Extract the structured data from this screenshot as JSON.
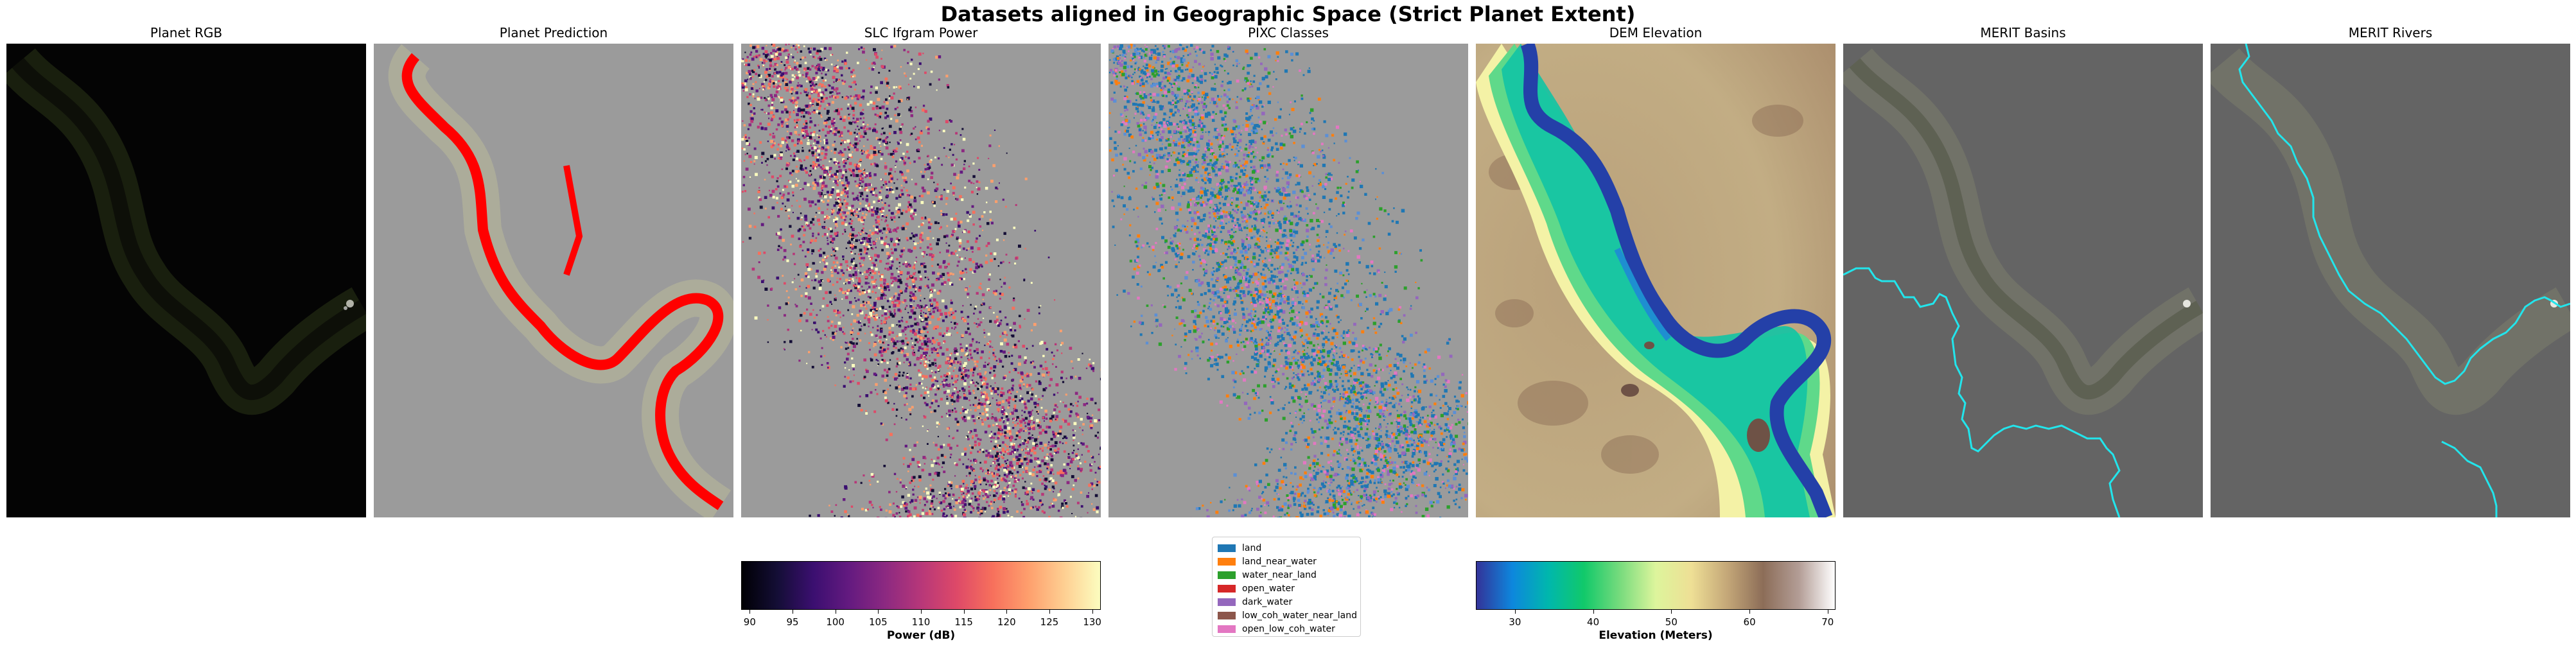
{
  "figure": {
    "title": "Datasets aligned in Geographic Space (Strict Planet Extent)"
  },
  "panels": {
    "planet_rgb": "Planet RGB",
    "planet_prediction": "Planet Prediction",
    "slc_power": "SLC Ifgram Power",
    "pixc_classes": "PIXC Classes",
    "dem": "DEM Elevation",
    "merit_basins": "MERIT Basins",
    "merit_rivers": "MERIT Rivers"
  },
  "colors": {
    "prediction": "#ff0000",
    "merit_line": "#22e5ec",
    "no_data": "#9b9b9b"
  },
  "chart_data": [
    {
      "type": "heatmap",
      "title": "SLC Ifgram Power",
      "colormap": "magma",
      "colorbar": {
        "label": "Power (dB)",
        "range": [
          89,
          131
        ],
        "ticks": [
          "90",
          "95",
          "100",
          "105",
          "110",
          "115",
          "120",
          "125",
          "130"
        ],
        "tick_values": [
          90,
          95,
          100,
          105,
          110,
          115,
          120,
          125,
          130
        ]
      }
    },
    {
      "type": "heatmap",
      "title": "PIXC Classes",
      "legend": {
        "placement": "below",
        "entries": [
          {
            "label": "land",
            "color": "#1f77b4"
          },
          {
            "label": "land_near_water",
            "color": "#ff7f0e"
          },
          {
            "label": "water_near_land",
            "color": "#2ca02c"
          },
          {
            "label": "open_water",
            "color": "#d62728"
          },
          {
            "label": "dark_water",
            "color": "#9467bd"
          },
          {
            "label": "low_coh_water_near_land",
            "color": "#8c564b"
          },
          {
            "label": "open_low_coh_water",
            "color": "#e377c2"
          }
        ]
      }
    },
    {
      "type": "heatmap",
      "title": "DEM Elevation",
      "colormap": "terrain",
      "colorbar": {
        "label": "Elevation (Meters)",
        "range": [
          25,
          71
        ],
        "ticks": [
          "30",
          "40",
          "50",
          "60",
          "70"
        ],
        "tick_values": [
          30,
          40,
          50,
          60,
          70
        ]
      }
    }
  ]
}
